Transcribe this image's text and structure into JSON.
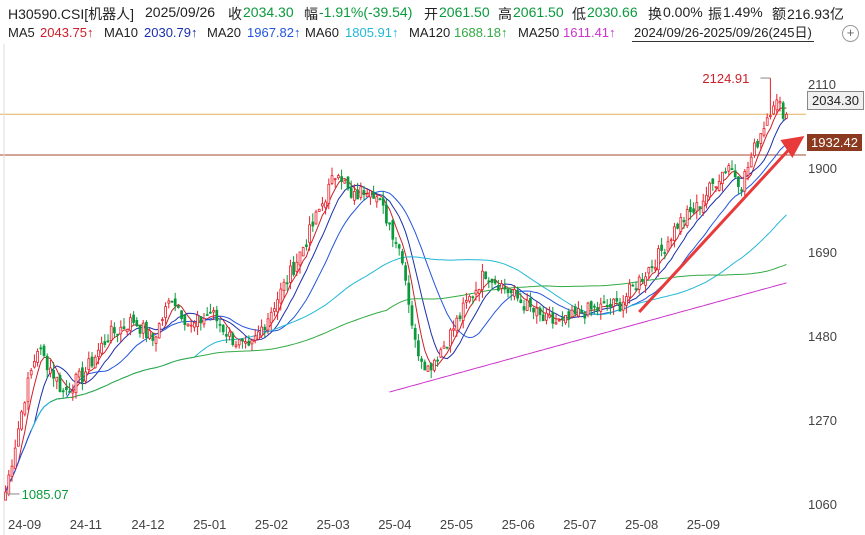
{
  "header": {
    "code": "H30590.CSI[机器人]",
    "date": "2025/09/26",
    "close_label": "收",
    "close": "2034.30",
    "change_label": "幅",
    "change": "-1.91%(-39.54)",
    "open_label": "开",
    "open": "2061.50",
    "high_label": "高",
    "high": "2061.50",
    "low_label": "低",
    "low": "2030.66",
    "turnover_label": "换",
    "turnover": "0.00%",
    "amplitude_label": "振",
    "amplitude": "1.49%",
    "amount_label": "额",
    "amount": "216.93亿"
  },
  "ma_bar": {
    "ma5_label": "MA5",
    "ma5": "2043.75↑",
    "ma10_label": "MA10",
    "ma10": "2030.79↑",
    "ma20_label": "MA20",
    "ma20": "1967.82↑",
    "ma60_label": "MA60",
    "ma60": "1805.91↑",
    "ma120_label": "MA120",
    "ma120": "1688.18↑",
    "ma250_label": "MA250",
    "ma250": "1611.41↑",
    "range": "2024/09/26-2025/09/26(245日)",
    "add_symbol": "+"
  },
  "colors": {
    "up": "#e8202a",
    "down": "#0a9a3c",
    "ma5": "#cc1f2a",
    "ma10": "#1a2faa",
    "ma20": "#2255dd",
    "ma60": "#22b7d6",
    "ma120": "#33aa44",
    "ma250": "#cc33cc",
    "current_line": "#e2b45c",
    "level_line": "#a34a2e",
    "arrow": "#e83a3a"
  },
  "price_tags": {
    "current": "2034.30",
    "level": "1932.42"
  },
  "chart_data": {
    "type": "candlestick",
    "y_axis": {
      "ticks": [
        1060,
        1270,
        1480,
        1690,
        1900,
        2110
      ],
      "ylim": [
        1035,
        2160
      ]
    },
    "x_axis": {
      "ticks": [
        "24-09",
        "24-11",
        "24-12",
        "25-01",
        "25-02",
        "25-03",
        "25-04",
        "25-05",
        "25-06",
        "25-07",
        "25-08",
        "25-09"
      ]
    },
    "annotations": {
      "high": "2124.91",
      "low": "1085.07"
    },
    "current_price": 2034.3,
    "horizontal_level": 1932.42,
    "anchors": [
      [
        0,
        1090
      ],
      [
        6,
        1330
      ],
      [
        10,
        1450
      ],
      [
        14,
        1400
      ],
      [
        18,
        1340
      ],
      [
        24,
        1380
      ],
      [
        32,
        1480
      ],
      [
        40,
        1520
      ],
      [
        46,
        1470
      ],
      [
        52,
        1580
      ],
      [
        58,
        1500
      ],
      [
        64,
        1540
      ],
      [
        70,
        1480
      ],
      [
        76,
        1440
      ],
      [
        82,
        1530
      ],
      [
        88,
        1620
      ],
      [
        94,
        1720
      ],
      [
        100,
        1830
      ],
      [
        104,
        1900
      ],
      [
        108,
        1820
      ],
      [
        114,
        1860
      ],
      [
        120,
        1760
      ],
      [
        124,
        1680
      ],
      [
        128,
        1460
      ],
      [
        132,
        1400
      ],
      [
        138,
        1470
      ],
      [
        144,
        1560
      ],
      [
        150,
        1640
      ],
      [
        156,
        1600
      ],
      [
        162,
        1560
      ],
      [
        168,
        1520
      ],
      [
        174,
        1510
      ],
      [
        180,
        1540
      ],
      [
        186,
        1550
      ],
      [
        192,
        1560
      ],
      [
        198,
        1620
      ],
      [
        204,
        1680
      ],
      [
        210,
        1760
      ],
      [
        216,
        1800
      ],
      [
        222,
        1870
      ],
      [
        226,
        1910
      ],
      [
        230,
        1860
      ],
      [
        236,
        1990
      ],
      [
        240,
        2070
      ],
      [
        244,
        2034
      ]
    ],
    "arrow": {
      "from": [
        198,
        1540
      ],
      "to": [
        244,
        2000
      ]
    }
  }
}
